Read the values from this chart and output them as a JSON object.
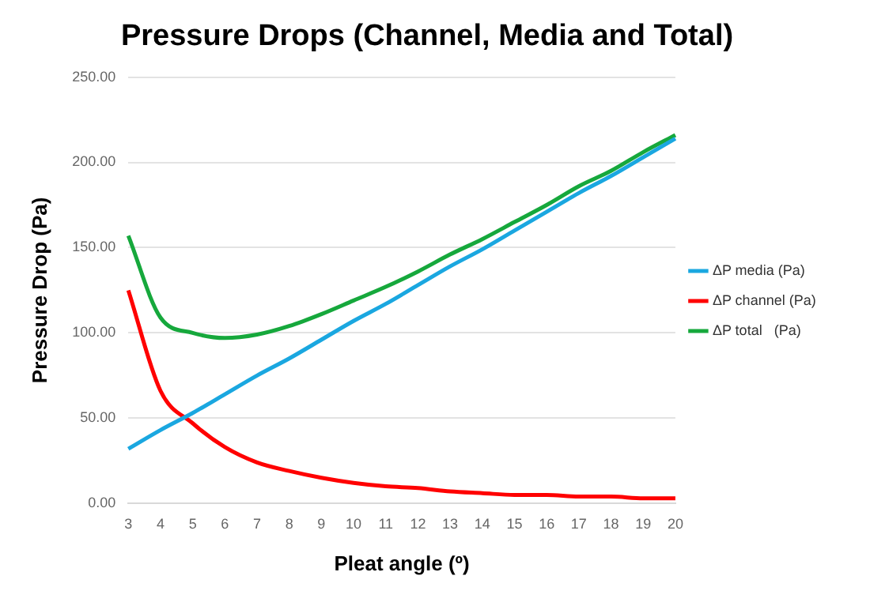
{
  "chart_data": {
    "type": "line",
    "title": "Pressure Drops (Channel, Media and Total)",
    "xlabel": "Pleat angle (º)",
    "ylabel": "Pressure Drop (Pa)",
    "categories": [
      "3",
      "4",
      "5",
      "6",
      "7",
      "8",
      "9",
      "10",
      "11",
      "12",
      "13",
      "14",
      "15",
      "16",
      "17",
      "18",
      "19",
      "20"
    ],
    "series": [
      {
        "name": "ΔP media (Pa)",
        "color": "#1aa7e0",
        "values": [
          32,
          43,
          53,
          64,
          75,
          85,
          96,
          107,
          117,
          128,
          139,
          149,
          160,
          171,
          182,
          192,
          203,
          214
        ]
      },
      {
        "name": "ΔP channel (Pa)",
        "color": "#ff0000",
        "values": [
          125,
          66,
          47,
          33,
          24,
          19,
          15,
          12,
          10,
          9,
          7,
          6,
          5,
          5,
          4,
          4,
          3,
          3
        ]
      },
      {
        "name": "ΔP total   (Pa)",
        "color": "#16a83c",
        "values": [
          157,
          109,
          100,
          97,
          99,
          104,
          111,
          119,
          127,
          136,
          146,
          155,
          165,
          175,
          186,
          195,
          206,
          216
        ]
      }
    ],
    "ylim": [
      0,
      250
    ],
    "yticks": [
      {
        "value": 0,
        "label": "0.00"
      },
      {
        "value": 50,
        "label": "50.00"
      },
      {
        "value": 100,
        "label": "100.00"
      },
      {
        "value": 150,
        "label": "150.00"
      },
      {
        "value": 200,
        "label": "200.00"
      },
      {
        "value": 250,
        "label": "250.00"
      }
    ],
    "grid": "y",
    "legend": "right",
    "marker": "none",
    "line_style": "solid"
  }
}
